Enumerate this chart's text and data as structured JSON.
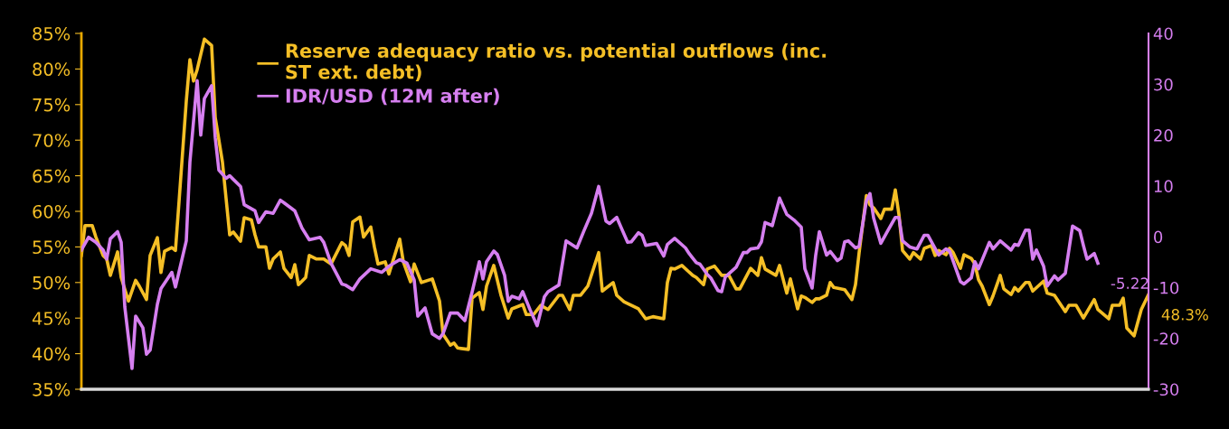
{
  "chart_data": {
    "type": "line",
    "categories": [
      null,
      null,
      null,
      null,
      null,
      null,
      null,
      null,
      null,
      null,
      null,
      null,
      null,
      null,
      null,
      null,
      null,
      null,
      null,
      null,
      null,
      null,
      null,
      null,
      null,
      null,
      null,
      null,
      null,
      null,
      null,
      null,
      null,
      null,
      null,
      null,
      null,
      null,
      null,
      null,
      null,
      null,
      null,
      null,
      null,
      null,
      null,
      null,
      null,
      null,
      null,
      null,
      null,
      null,
      null,
      null,
      null,
      null,
      null,
      null,
      null,
      null,
      null,
      null,
      null,
      null,
      null,
      null,
      null,
      null,
      null,
      null,
      null,
      null,
      null,
      null,
      null,
      null,
      null,
      null,
      null,
      null,
      null,
      null,
      null,
      null,
      null,
      null,
      null,
      null,
      null,
      null,
      null,
      null,
      null,
      null,
      null,
      null,
      null,
      null,
      null,
      null,
      null,
      null,
      null,
      null,
      null,
      null,
      null,
      null,
      null,
      null,
      null,
      null,
      null,
      null,
      null,
      null,
      null,
      null,
      null,
      null,
      null,
      null,
      null,
      null,
      null,
      null,
      null,
      null,
      null,
      null,
      null,
      null,
      null,
      null,
      null,
      null,
      null,
      null,
      null,
      null,
      null,
      null,
      null,
      null,
      null,
      null,
      null,
      null,
      null,
      null,
      null,
      null,
      null,
      null,
      null,
      null,
      null,
      null,
      null,
      null,
      null,
      null,
      null,
      null,
      null,
      null,
      null,
      null,
      null,
      null,
      null,
      null,
      null,
      null,
      null,
      null,
      null,
      null,
      null,
      null,
      null,
      null,
      null,
      null,
      null,
      null,
      null,
      null,
      null,
      null,
      null,
      null,
      null,
      null,
      null,
      null,
      null,
      null,
      null,
      null,
      null,
      null,
      null,
      null,
      null,
      null,
      null,
      null,
      null,
      null,
      null,
      null,
      null,
      null,
      null,
      null,
      null,
      null,
      null,
      null,
      null,
      null,
      null,
      null,
      null,
      null,
      null,
      null,
      null,
      null,
      null,
      null,
      null,
      null,
      null,
      null,
      null,
      null,
      null,
      null,
      null,
      null,
      null,
      null,
      null,
      null,
      null,
      null,
      null,
      null,
      null,
      null,
      null,
      null,
      null,
      null,
      null,
      null,
      null,
      null,
      null,
      null,
      null,
      null,
      null,
      null,
      null,
      null,
      null,
      null,
      null,
      null,
      null,
      null,
      null,
      null,
      null,
      null,
      null,
      null,
      null,
      null,
      null,
      null,
      null,
      null,
      null,
      null,
      null,
      null,
      null,
      null,
      null,
      null
    ],
    "ylim": [
      35,
      85
    ],
    "yticks": [
      {
        "value": 35,
        "label": "35%"
      },
      {
        "value": 40,
        "label": "40%"
      },
      {
        "value": 45,
        "label": "45%"
      },
      {
        "value": 50,
        "label": "50%"
      },
      {
        "value": 55,
        "label": "55%"
      },
      {
        "value": 60,
        "label": "60%"
      },
      {
        "value": 65,
        "label": "65%"
      },
      {
        "value": 70,
        "label": "70%"
      },
      {
        "value": 75,
        "label": "75%"
      },
      {
        "value": 80,
        "label": "80%"
      },
      {
        "value": 85,
        "label": "85%"
      }
    ],
    "y2lim": [
      -30,
      40
    ],
    "y2ticks": [
      -30,
      -20,
      -10,
      0,
      10,
      20,
      30,
      40
    ],
    "grid": false,
    "legend": "top",
    "line_style": "solid",
    "marker": "none",
    "series": [
      {
        "name": "Reserve adequacy ratio vs. potential outflows (inc.\nST ext. debt)",
        "color": "#f5bf26",
        "axis": "y",
        "values": [
          53.8,
          58,
          null,
          58,
          56.4,
          null,
          53.8,
          53.3,
          51,
          null,
          54.3,
          50.7,
          null,
          47.4,
          null,
          50.3,
          49.5,
          null,
          47.6,
          53.8,
          null,
          56.3,
          51.4,
          54.4,
          null,
          54.9,
          54.5,
          61.4,
          null,
          75.5,
          81.3,
          78.3,
          79.9,
          null,
          84.2,
          null,
          83.3,
          73.2,
          null,
          66.9,
          null,
          56.7,
          57.1,
          null,
          55.8,
          59.1,
          null,
          58.8,
          56.7,
          55,
          null,
          55,
          52,
          53.3,
          null,
          54.3,
          52,
          null,
          50.7,
          52.5,
          49.7,
          null,
          50.7,
          53.8,
          null,
          53.3,
          null,
          53.3,
          null,
          52.6,
          null,
          null,
          55.6,
          55.2,
          53.8,
          58.5,
          null,
          59.2,
          56.4,
          null,
          57.8,
          55,
          52.6,
          null,
          52.9,
          51.2,
          null,
          null,
          56.1,
          52.9,
          null,
          50.1,
          52.6,
          null,
          50,
          null,
          null,
          50.5,
          null,
          47.4,
          42.7,
          null,
          41.2,
          41.5,
          40.8,
          null,
          null,
          40.6,
          47.8,
          null,
          48.6,
          46.2,
          49.5,
          null,
          52.4,
          null,
          48.2,
          null,
          45,
          46.3,
          null,
          null,
          46.9,
          45.5,
          null,
          45.5,
          null,
          46.8,
          null,
          46.2,
          null,
          null,
          48.2,
          48.2,
          null,
          46.2,
          48.2,
          null,
          48.2,
          null,
          49.5,
          null,
          null,
          54.2,
          48.8,
          null,
          null,
          50,
          48.2,
          null,
          47.3,
          null,
          null,
          null,
          46.3,
          null,
          44.9,
          null,
          45.2,
          null,
          null,
          44.9,
          50,
          52,
          51.9,
          null,
          52.4,
          null,
          null,
          51,
          50.7,
          null,
          49.7,
          51.9,
          null,
          52.3,
          null,
          51,
          null,
          51,
          null,
          49.1,
          49.1,
          null,
          null,
          52,
          null,
          51,
          53.5,
          51.9,
          null,
          null,
          51,
          52.4,
          null,
          48.5,
          50.5,
          null,
          46.3,
          48.1,
          47.9,
          null,
          47.2,
          47.7,
          47.7,
          null,
          48.2,
          50,
          49.3,
          null,
          null,
          49,
          null,
          47.6,
          49.7,
          54.2,
          null,
          62.2,
          60.9,
          60.5,
          null,
          59,
          60.3,
          null,
          60.3,
          63,
          59.6,
          54.5,
          null,
          53.3,
          54.2,
          null,
          53.3,
          54.8,
          null,
          55.2,
          53.8,
          54.5,
          null,
          53.9,
          54.8,
          54.2,
          null,
          52,
          53.9,
          null,
          53.4,
          52.6,
          50.4,
          49.5,
          null,
          46.9,
          48.1,
          null,
          51,
          49.1,
          null,
          48.3,
          49.3,
          48.8,
          null,
          50,
          50,
          48.8,
          null,
          null,
          50.2,
          48.5,
          null,
          48.2,
          null,
          null,
          45.9,
          46.8,
          null,
          46.8,
          null,
          45,
          null,
          null,
          47.6,
          46.2,
          null,
          null,
          44.9,
          46.8,
          null,
          46.8,
          47.8,
          43.6,
          null,
          42.5,
          null,
          46.2,
          null,
          48.3
        ],
        "value_labels": [
          null,
          null,
          null,
          null,
          null,
          null,
          null,
          null,
          null,
          null,
          null,
          null,
          null,
          null,
          null,
          null,
          null,
          null,
          null,
          null,
          null,
          null,
          null,
          null,
          null,
          null,
          null,
          null,
          null,
          null,
          null,
          null,
          null,
          null,
          null,
          null,
          null,
          null,
          null,
          null,
          null,
          null,
          null,
          null,
          null,
          null,
          null,
          null,
          null,
          null,
          null,
          null,
          null,
          null,
          null,
          null,
          null,
          null,
          null,
          null,
          null,
          null,
          null,
          null,
          null,
          null,
          null,
          null,
          null,
          null,
          null,
          null,
          null,
          null,
          null,
          null,
          null,
          null,
          null,
          null,
          null,
          null,
          null,
          null,
          null,
          null,
          null,
          null,
          null,
          null,
          null,
          null,
          null,
          null,
          null,
          null,
          null,
          null,
          null,
          null,
          null,
          null,
          null,
          null,
          null,
          null,
          null,
          null,
          null,
          null,
          null,
          null,
          null,
          null,
          null,
          null,
          null,
          null,
          null,
          null,
          null,
          null,
          null,
          null,
          null,
          null,
          null,
          null,
          null,
          null,
          null,
          null,
          null,
          null,
          null,
          null,
          null,
          null,
          null,
          null,
          null,
          null,
          null,
          null,
          null,
          null,
          null,
          null,
          null,
          null,
          null,
          null,
          null,
          null,
          null,
          null,
          null,
          null,
          null,
          null,
          null,
          null,
          null,
          null,
          null,
          null,
          null,
          null,
          null,
          null,
          null,
          null,
          null,
          null,
          null,
          null,
          null,
          null,
          null,
          null,
          null,
          null,
          null,
          null,
          null,
          null,
          null,
          null,
          null,
          null,
          null,
          null,
          null,
          null,
          null,
          null,
          null,
          null,
          null,
          null,
          null,
          null,
          null,
          null,
          null,
          null,
          null,
          null,
          null,
          null,
          null,
          null,
          null,
          null,
          null,
          null,
          null,
          null,
          null,
          null,
          null,
          null,
          null,
          null,
          null,
          null,
          null,
          null,
          null,
          null,
          null,
          null,
          null,
          null,
          null,
          null,
          null,
          null,
          null,
          null,
          null,
          null,
          null,
          null,
          null,
          null,
          null,
          null,
          null,
          null,
          null,
          null,
          null,
          null,
          null,
          null,
          null,
          null,
          null,
          null,
          null,
          null,
          null,
          null,
          null,
          null,
          null,
          null,
          null,
          null,
          null,
          null,
          null,
          null,
          null,
          null,
          null,
          null,
          null,
          null,
          null,
          null,
          null,
          null,
          null,
          null,
          null,
          null,
          null,
          null,
          null,
          null,
          null,
          null,
          null,
          "48.3%"
        ]
      },
      {
        "name": "IDR/USD (12M after)",
        "color": "#d67ff0",
        "axis": "y2",
        "values": [
          -2.6,
          null,
          -0.1,
          null,
          -1.1,
          null,
          -2.6,
          -4.4,
          -0.4,
          null,
          1,
          -1.1,
          -13.8,
          null,
          -25.9,
          -15.6,
          null,
          -17.9,
          -23.1,
          -22.3,
          null,
          -13.3,
          -10.2,
          null,
          null,
          -7,
          -9.9,
          null,
          null,
          -0.8,
          14.7,
          null,
          30.7,
          20,
          27.2,
          null,
          29.7,
          19.5,
          13.1,
          null,
          11.5,
          12,
          null,
          null,
          9.9,
          6.3,
          null,
          null,
          5.1,
          2.8,
          null,
          4.9,
          null,
          4.6,
          null,
          7.2,
          6.7,
          null,
          null,
          5.1,
          null,
          1.7,
          null,
          -0.6,
          null,
          null,
          -0.1,
          -1.1,
          null,
          -5.2,
          null,
          -7.9,
          -9.3,
          -9.5,
          null,
          -10.4,
          null,
          -8.3,
          null,
          null,
          -6.3,
          null,
          null,
          -7,
          null,
          -5.8,
          null,
          null,
          -4.5,
          null,
          -5.2,
          null,
          -8.5,
          -15.6,
          null,
          -14,
          null,
          -19.1,
          null,
          -20,
          -19,
          null,
          -15,
          null,
          -15,
          null,
          -16.5,
          null,
          -10.9,
          null,
          -4.9,
          -8.3,
          -4.9,
          null,
          -2.8,
          -3.5,
          null,
          -7.6,
          -12.7,
          -11.7,
          null,
          -12.2,
          -10.8,
          null,
          -14.3,
          null,
          -17.5,
          null,
          -11.8,
          -10.8,
          null,
          null,
          -9.5,
          null,
          -0.8,
          null,
          null,
          -2.2,
          null,
          1.3,
          null,
          4.6,
          null,
          9.9,
          null,
          3.1,
          2.6,
          null,
          3.8,
          null,
          null,
          -1.1,
          -1,
          null,
          0.8,
          0.3,
          -1.7,
          null,
          null,
          -1.3,
          null,
          -3.8,
          -1.5,
          null,
          -0.3,
          null,
          null,
          -2.2,
          -3.3,
          null,
          -5.1,
          -5.4,
          null,
          -7.4,
          -8.1,
          null,
          -10.6,
          -10.8,
          -7.9,
          null,
          null,
          -6,
          null,
          -3.1,
          -3.1,
          -2.4,
          null,
          -2.2,
          -1,
          2.8,
          null,
          2.2,
          null,
          7.6,
          null,
          4.4,
          null,
          3.3,
          null,
          1.9,
          -6.3,
          null,
          -10.1,
          -3.6,
          1,
          null,
          -3.6,
          -2.9,
          null,
          -4.7,
          -4.2,
          -1,
          -0.8,
          null,
          -2.2,
          -1.9,
          null,
          7,
          8.5,
          3.7,
          null,
          -1.3,
          null,
          1.3,
          null,
          3.8,
          3.8,
          -0.8,
          null,
          -2,
          null,
          -2.4,
          null,
          0.3,
          0.3,
          null,
          null,
          -3.6,
          null,
          -2.4,
          -2.8,
          null,
          null,
          -8.8,
          -9.3,
          null,
          -8.1,
          -4.9,
          -6.3,
          null,
          null,
          -1.1,
          -2.4,
          null,
          -0.8,
          null,
          null,
          -2.6,
          -1.5,
          -1.7,
          null,
          1.3,
          1.3,
          -4.4,
          -2.6,
          null,
          -5.8,
          -9.7,
          null,
          -7.7,
          -8.5,
          null,
          -7.2,
          null,
          2.1,
          null,
          1.2,
          -1.7,
          -4.4,
          null,
          -3.3,
          -5.22,
          null,
          null,
          null,
          null,
          null,
          null,
          null,
          null,
          null,
          null,
          null,
          null,
          null,
          null
        ],
        "value_labels": [
          null,
          null,
          null,
          null,
          null,
          null,
          null,
          null,
          null,
          null,
          null,
          null,
          null,
          null,
          null,
          null,
          null,
          null,
          null,
          null,
          null,
          null,
          null,
          null,
          null,
          null,
          null,
          null,
          null,
          null,
          null,
          null,
          null,
          null,
          null,
          null,
          null,
          null,
          null,
          null,
          null,
          null,
          null,
          null,
          null,
          null,
          null,
          null,
          null,
          null,
          null,
          null,
          null,
          null,
          null,
          null,
          null,
          null,
          null,
          null,
          null,
          null,
          null,
          null,
          null,
          null,
          null,
          null,
          null,
          null,
          null,
          null,
          null,
          null,
          null,
          null,
          null,
          null,
          null,
          null,
          null,
          null,
          null,
          null,
          null,
          null,
          null,
          null,
          null,
          null,
          null,
          null,
          null,
          null,
          null,
          null,
          null,
          null,
          null,
          null,
          null,
          null,
          null,
          null,
          null,
          null,
          null,
          null,
          null,
          null,
          null,
          null,
          null,
          null,
          null,
          null,
          null,
          null,
          null,
          null,
          null,
          null,
          null,
          null,
          null,
          null,
          null,
          null,
          null,
          null,
          null,
          null,
          null,
          null,
          null,
          null,
          null,
          null,
          null,
          null,
          null,
          null,
          null,
          null,
          null,
          null,
          null,
          null,
          null,
          null,
          null,
          null,
          null,
          null,
          null,
          null,
          null,
          null,
          null,
          null,
          null,
          null,
          null,
          null,
          null,
          null,
          null,
          null,
          null,
          null,
          null,
          null,
          null,
          null,
          null,
          null,
          null,
          null,
          null,
          null,
          null,
          null,
          null,
          null,
          null,
          null,
          null,
          null,
          null,
          null,
          null,
          null,
          null,
          null,
          null,
          null,
          null,
          null,
          null,
          null,
          null,
          null,
          null,
          null,
          null,
          null,
          null,
          null,
          null,
          null,
          null,
          null,
          null,
          null,
          null,
          null,
          null,
          null,
          null,
          null,
          null,
          null,
          null,
          null,
          null,
          null,
          null,
          null,
          null,
          null,
          null,
          null,
          null,
          null,
          null,
          null,
          null,
          null,
          null,
          null,
          null,
          null,
          null,
          null,
          null,
          null,
          null,
          null,
          null,
          null,
          null,
          null,
          null,
          null,
          null,
          null,
          null,
          null,
          null,
          null,
          null,
          null,
          null,
          null,
          null,
          null,
          null,
          null,
          null,
          null,
          null,
          null,
          null,
          null,
          null,
          null,
          null,
          null,
          null,
          null,
          null,
          "-5.22",
          null,
          null,
          null,
          null,
          null,
          null,
          null,
          null,
          null,
          null,
          null,
          null,
          null,
          null
        ]
      }
    ]
  }
}
